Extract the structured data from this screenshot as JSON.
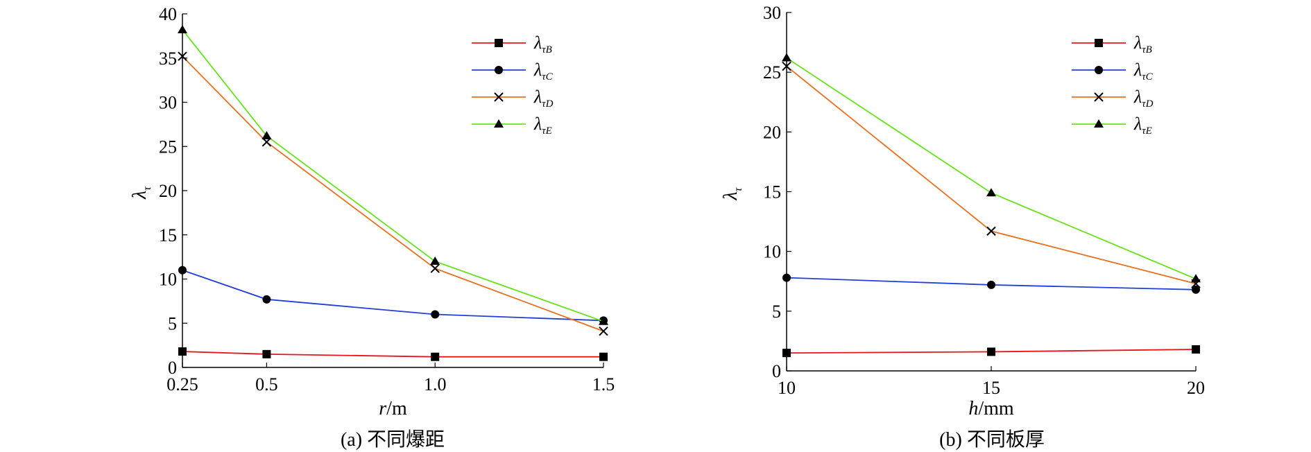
{
  "chart_data": [
    {
      "type": "line",
      "caption": "(a) 不同爆距",
      "xlabel_var": "r",
      "xlabel_unit": "/m",
      "ylabel_main": "λ",
      "ylabel_sub": "τ",
      "x": [
        0.25,
        0.5,
        1.0,
        1.5
      ],
      "xticks": [
        "0.25",
        "0.5",
        "1.0",
        "1.5"
      ],
      "ylim": [
        0,
        40
      ],
      "yticks": [
        "0",
        "5",
        "10",
        "15",
        "20",
        "25",
        "30",
        "35",
        "40"
      ],
      "legend_position": "top-right",
      "series": [
        {
          "name": "λτB",
          "label_main": "λ",
          "label_sub": "τB",
          "color": "#e8141b",
          "marker": "square",
          "values": [
            1.8,
            1.5,
            1.2,
            1.2
          ]
        },
        {
          "name": "λτC",
          "label_main": "λ",
          "label_sub": "τC",
          "color": "#1f3fd9",
          "marker": "circle",
          "values": [
            11.0,
            7.7,
            6.0,
            5.3
          ]
        },
        {
          "name": "λτD",
          "label_main": "λ",
          "label_sub": "τD",
          "color": "#e8701e",
          "marker": "x",
          "values": [
            35.2,
            25.5,
            11.2,
            4.1
          ]
        },
        {
          "name": "λτE",
          "label_main": "λ",
          "label_sub": "τE",
          "color": "#66e21c",
          "marker": "triangle",
          "values": [
            38.2,
            26.2,
            12.0,
            5.2
          ]
        }
      ]
    },
    {
      "type": "line",
      "caption": "(b) 不同板厚",
      "xlabel_var": "h",
      "xlabel_unit": "/mm",
      "ylabel_main": "λ",
      "ylabel_sub": "τ",
      "x": [
        10,
        15,
        20
      ],
      "xticks": [
        "10",
        "15",
        "20"
      ],
      "ylim": [
        0,
        30
      ],
      "yticks": [
        "0",
        "5",
        "10",
        "15",
        "20",
        "25",
        "30"
      ],
      "legend_position": "top-right",
      "series": [
        {
          "name": "λτB",
          "label_main": "λ",
          "label_sub": "τB",
          "color": "#e8141b",
          "marker": "square",
          "values": [
            1.5,
            1.6,
            1.8
          ]
        },
        {
          "name": "λτC",
          "label_main": "λ",
          "label_sub": "τC",
          "color": "#1f3fd9",
          "marker": "circle",
          "values": [
            7.8,
            7.2,
            6.8
          ]
        },
        {
          "name": "λτD",
          "label_main": "λ",
          "label_sub": "τD",
          "color": "#e8701e",
          "marker": "x",
          "values": [
            25.5,
            11.7,
            7.3
          ]
        },
        {
          "name": "λτE",
          "label_main": "λ",
          "label_sub": "τE",
          "color": "#66e21c",
          "marker": "triangle",
          "values": [
            26.2,
            14.9,
            7.7
          ]
        }
      ]
    }
  ]
}
